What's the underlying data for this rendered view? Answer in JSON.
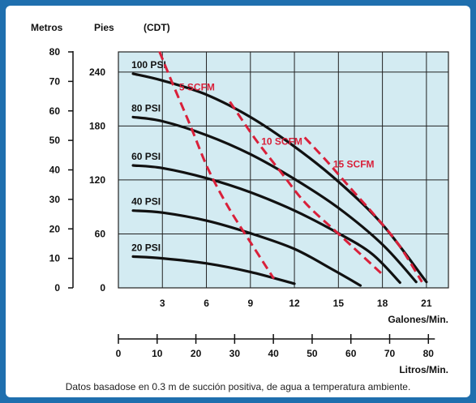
{
  "chart_data": {
    "type": "line",
    "axis_headers": {
      "meters": "Metros",
      "feet": "Pies",
      "unit": "(CDT)"
    },
    "x_primary": {
      "label": "Galones/Min.",
      "ticks": [
        3,
        6,
        9,
        12,
        15,
        18,
        21
      ],
      "range": [
        0,
        22.5
      ]
    },
    "x_secondary": {
      "label": "Litros/Min.",
      "ticks": [
        0,
        10,
        20,
        30,
        40,
        50,
        60,
        70,
        80
      ]
    },
    "y_meters": {
      "ticks": [
        0,
        10,
        20,
        30,
        40,
        50,
        60,
        70,
        80
      ],
      "range": [
        0,
        80
      ]
    },
    "y_feet": {
      "ticks": [
        0,
        60,
        120,
        180,
        240
      ],
      "range": [
        0,
        262.4
      ]
    },
    "pressure_curves": [
      {
        "name": "100 PSI",
        "points": [
          [
            1,
            72.6
          ],
          [
            3,
            70.3
          ],
          [
            6,
            65.5
          ],
          [
            9,
            57.9
          ],
          [
            12,
            47.9
          ],
          [
            15,
            36
          ],
          [
            18,
            21.5
          ],
          [
            21,
            2
          ]
        ]
      },
      {
        "name": "80 PSI",
        "points": [
          [
            1,
            57.9
          ],
          [
            3,
            56.5
          ],
          [
            6,
            51.8
          ],
          [
            9,
            45.3
          ],
          [
            12,
            36.9
          ],
          [
            15,
            27.1
          ],
          [
            18,
            14.7
          ],
          [
            20.3,
            2
          ]
        ]
      },
      {
        "name": "60 PSI",
        "points": [
          [
            1,
            41.5
          ],
          [
            3,
            40.6
          ],
          [
            6,
            37.2
          ],
          [
            9,
            32.4
          ],
          [
            12,
            26.2
          ],
          [
            15,
            18.5
          ],
          [
            17.3,
            11.5
          ],
          [
            19.2,
            1.8
          ]
        ]
      },
      {
        "name": "40 PSI",
        "points": [
          [
            1,
            26.2
          ],
          [
            3,
            25.5
          ],
          [
            6,
            22.8
          ],
          [
            9,
            18.5
          ],
          [
            12,
            13.2
          ],
          [
            14.5,
            6.5
          ],
          [
            16.5,
            0.8
          ]
        ]
      },
      {
        "name": "20 PSI",
        "points": [
          [
            1,
            10.6
          ],
          [
            3,
            10
          ],
          [
            6,
            8.3
          ],
          [
            9,
            5.4
          ],
          [
            12,
            1.4
          ]
        ]
      }
    ],
    "air_curves": [
      {
        "name": "5 SCFM",
        "points": [
          [
            2.8,
            80.1
          ],
          [
            3.7,
            69.2
          ],
          [
            4.9,
            55.1
          ],
          [
            6.1,
            40.5
          ],
          [
            7.5,
            27.3
          ],
          [
            9.1,
            14.7
          ],
          [
            10.6,
            3.1
          ]
        ]
      },
      {
        "name": "10 SCFM",
        "points": [
          [
            7.6,
            63.1
          ],
          [
            9.3,
            50.7
          ],
          [
            11.1,
            39.1
          ],
          [
            12.8,
            28.5
          ],
          [
            15.1,
            17.9
          ],
          [
            18.1,
            4.1
          ]
        ]
      },
      {
        "name": "15 SCFM",
        "points": [
          [
            12.7,
            51
          ],
          [
            14.2,
            43
          ],
          [
            15.7,
            34.5
          ],
          [
            17.5,
            24.4
          ],
          [
            19.1,
            14.7
          ],
          [
            20.7,
            2
          ]
        ]
      }
    ]
  },
  "footnote": "Datos basadose en 0.3 m de succión positiva, de agua a temperatura ambiente."
}
